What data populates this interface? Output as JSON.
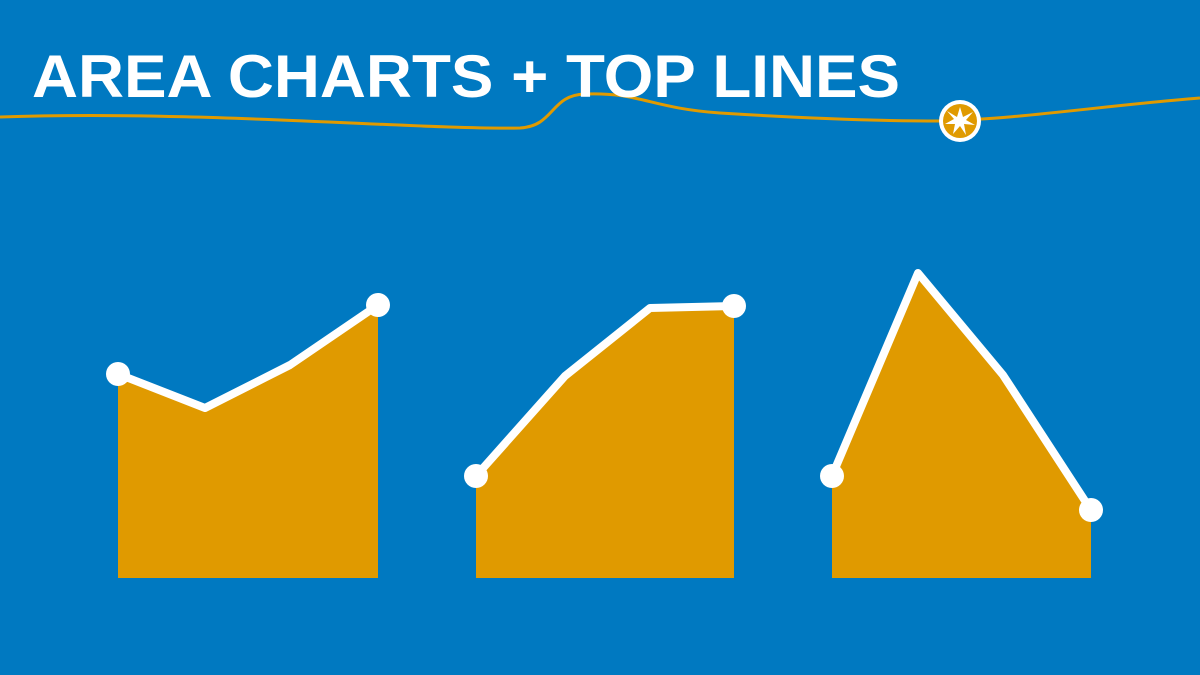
{
  "header": {
    "title": "AREA CHARTS + TOP LINES"
  }
}
